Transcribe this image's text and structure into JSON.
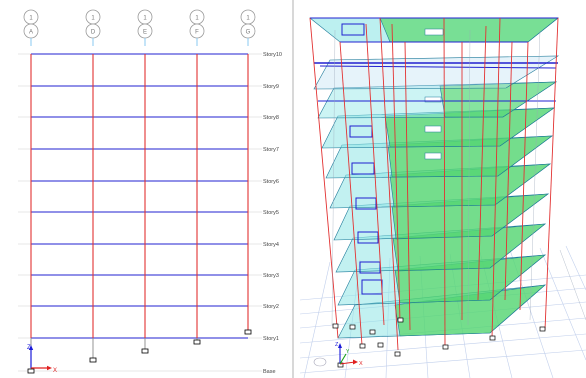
{
  "elevation_view": {
    "grid_bubbles": [
      {
        "top": "1",
        "bottom": "A"
      },
      {
        "top": "1",
        "bottom": "D"
      },
      {
        "top": "1",
        "bottom": "E"
      },
      {
        "top": "1",
        "bottom": "F"
      },
      {
        "top": "1",
        "bottom": "G"
      }
    ],
    "story_labels": [
      "Story10",
      "Story9",
      "Story8",
      "Story7",
      "Story6",
      "Story5",
      "Story4",
      "Story3",
      "Story2",
      "Story1",
      "Base"
    ],
    "axis": {
      "z": "Z",
      "x": "X"
    }
  },
  "model_3d_view": {
    "axis": {
      "z": "Z",
      "x": "X",
      "y": "Y"
    }
  },
  "colors": {
    "column": "#e23232",
    "beam": "#2020d0",
    "slab_green": "#3fd14a",
    "slab_cyan": "#8fe6e6",
    "grid": "#b9c8e8"
  }
}
